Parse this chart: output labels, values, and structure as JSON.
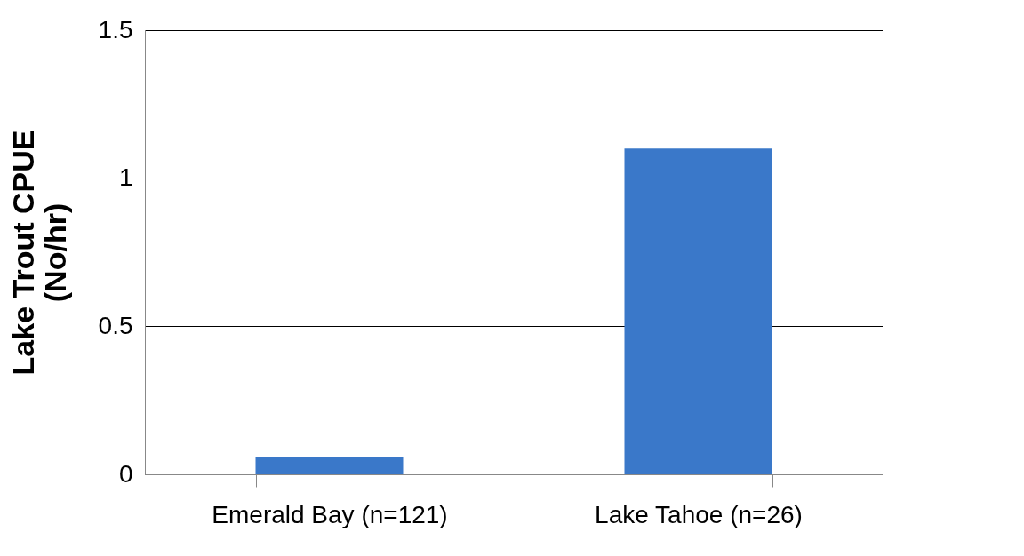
{
  "chart_data": {
    "type": "bar",
    "ylabel": "Lake Trout CPUE\n(No/hr)",
    "categories": [
      "Emerald Bay (n=121)",
      "Lake Tahoe (n=26)"
    ],
    "values": [
      0.06,
      1.1
    ],
    "color": "#3a78c9",
    "ylim": [
      0,
      1.5
    ],
    "yticks": [
      0,
      0.5,
      1,
      1.5
    ],
    "grid": "y"
  }
}
